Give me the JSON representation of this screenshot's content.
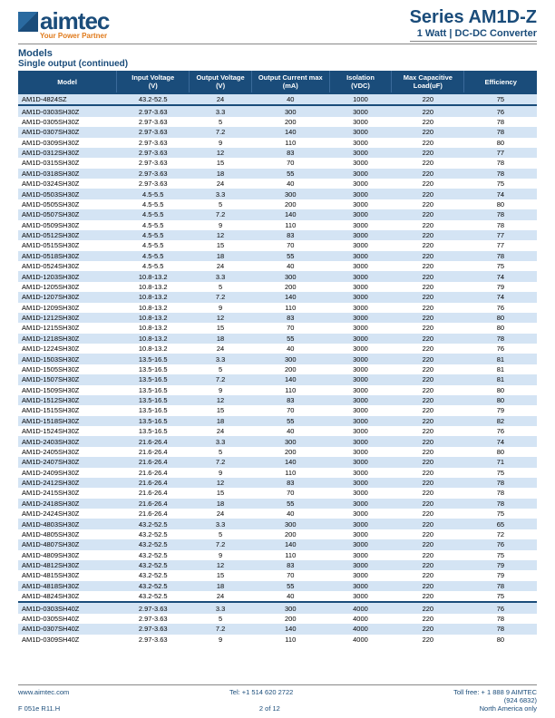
{
  "logo": {
    "text": "aimtec",
    "tagline": "Your Power Partner"
  },
  "title": {
    "series": "Series AM1D-Z",
    "sub": "1 Watt | DC-DC Converter"
  },
  "section": {
    "models": "Models",
    "sub": "Single output (continued)"
  },
  "columns": [
    {
      "l1": "Model",
      "l2": ""
    },
    {
      "l1": "Input Voltage",
      "l2": "(V)"
    },
    {
      "l1": "Output Voltage",
      "l2": "(V)"
    },
    {
      "l1": "Output Current max",
      "l2": "(mA)"
    },
    {
      "l1": "Isolation",
      "l2": "(VDC)"
    },
    {
      "l1": "Max Capacitive Load(uF)",
      "l2": ""
    },
    {
      "l1": "Efficiency",
      "l2": ""
    }
  ],
  "rows_a": [
    [
      "AM1D-4824SZ",
      "43.2-52.5",
      "24",
      "40",
      "1000",
      "220",
      "75"
    ]
  ],
  "rows_b": [
    [
      "AM1D-0303SH30Z",
      "2.97-3.63",
      "3.3",
      "300",
      "3000",
      "220",
      "76"
    ],
    [
      "AM1D-0305SH30Z",
      "2.97-3.63",
      "5",
      "200",
      "3000",
      "220",
      "78"
    ],
    [
      "AM1D-0307SH30Z",
      "2.97-3.63",
      "7.2",
      "140",
      "3000",
      "220",
      "78"
    ],
    [
      "AM1D-0309SH30Z",
      "2.97-3.63",
      "9",
      "110",
      "3000",
      "220",
      "80"
    ],
    [
      "AM1D-0312SH30Z",
      "2.97-3.63",
      "12",
      "83",
      "3000",
      "220",
      "77"
    ],
    [
      "AM1D-0315SH30Z",
      "2.97-3.63",
      "15",
      "70",
      "3000",
      "220",
      "78"
    ],
    [
      "AM1D-0318SH30Z",
      "2.97-3.63",
      "18",
      "55",
      "3000",
      "220",
      "78"
    ],
    [
      "AM1D-0324SH30Z",
      "2.97-3.63",
      "24",
      "40",
      "3000",
      "220",
      "75"
    ],
    [
      "AM1D-0503SH30Z",
      "4.5-5.5",
      "3.3",
      "300",
      "3000",
      "220",
      "74"
    ],
    [
      "AM1D-0505SH30Z",
      "4.5-5.5",
      "5",
      "200",
      "3000",
      "220",
      "80"
    ],
    [
      "AM1D-0507SH30Z",
      "4.5-5.5",
      "7.2",
      "140",
      "3000",
      "220",
      "78"
    ],
    [
      "AM1D-0509SH30Z",
      "4.5-5.5",
      "9",
      "110",
      "3000",
      "220",
      "78"
    ],
    [
      "AM1D-0512SH30Z",
      "4.5-5.5",
      "12",
      "83",
      "3000",
      "220",
      "77"
    ],
    [
      "AM1D-0515SH30Z",
      "4.5-5.5",
      "15",
      "70",
      "3000",
      "220",
      "77"
    ],
    [
      "AM1D-0518SH30Z",
      "4.5-5.5",
      "18",
      "55",
      "3000",
      "220",
      "78"
    ],
    [
      "AM1D-0524SH30Z",
      "4.5-5.5",
      "24",
      "40",
      "3000",
      "220",
      "75"
    ],
    [
      "AM1D-1203SH30Z",
      "10.8-13.2",
      "3.3",
      "300",
      "3000",
      "220",
      "74"
    ],
    [
      "AM1D-1205SH30Z",
      "10.8-13.2",
      "5",
      "200",
      "3000",
      "220",
      "79"
    ],
    [
      "AM1D-1207SH30Z",
      "10.8-13.2",
      "7.2",
      "140",
      "3000",
      "220",
      "74"
    ],
    [
      "AM1D-1209SH30Z",
      "10.8-13.2",
      "9",
      "110",
      "3000",
      "220",
      "76"
    ],
    [
      "AM1D-1212SH30Z",
      "10.8-13.2",
      "12",
      "83",
      "3000",
      "220",
      "80"
    ],
    [
      "AM1D-1215SH30Z",
      "10.8-13.2",
      "15",
      "70",
      "3000",
      "220",
      "80"
    ],
    [
      "AM1D-1218SH30Z",
      "10.8-13.2",
      "18",
      "55",
      "3000",
      "220",
      "78"
    ],
    [
      "AM1D-1224SH30Z",
      "10.8-13.2",
      "24",
      "40",
      "3000",
      "220",
      "76"
    ],
    [
      "AM1D-1503SH30Z",
      "13.5-16.5",
      "3.3",
      "300",
      "3000",
      "220",
      "81"
    ],
    [
      "AM1D-1505SH30Z",
      "13.5-16.5",
      "5",
      "200",
      "3000",
      "220",
      "81"
    ],
    [
      "AM1D-1507SH30Z",
      "13.5-16.5",
      "7.2",
      "140",
      "3000",
      "220",
      "81"
    ],
    [
      "AM1D-1509SH30Z",
      "13.5-16.5",
      "9",
      "110",
      "3000",
      "220",
      "80"
    ],
    [
      "AM1D-1512SH30Z",
      "13.5-16.5",
      "12",
      "83",
      "3000",
      "220",
      "80"
    ],
    [
      "AM1D-1515SH30Z",
      "13.5-16.5",
      "15",
      "70",
      "3000",
      "220",
      "79"
    ],
    [
      "AM1D-1518SH30Z",
      "13.5-16.5",
      "18",
      "55",
      "3000",
      "220",
      "82"
    ],
    [
      "AM1D-1524SH30Z",
      "13.5-16.5",
      "24",
      "40",
      "3000",
      "220",
      "76"
    ],
    [
      "AM1D-2403SH30Z",
      "21.6-26.4",
      "3.3",
      "300",
      "3000",
      "220",
      "74"
    ],
    [
      "AM1D-2405SH30Z",
      "21.6-26.4",
      "5",
      "200",
      "3000",
      "220",
      "80"
    ],
    [
      "AM1D-2407SH30Z",
      "21.6-26.4",
      "7.2",
      "140",
      "3000",
      "220",
      "71"
    ],
    [
      "AM1D-2409SH30Z",
      "21.6-26.4",
      "9",
      "110",
      "3000",
      "220",
      "75"
    ],
    [
      "AM1D-2412SH30Z",
      "21.6-26.4",
      "12",
      "83",
      "3000",
      "220",
      "78"
    ],
    [
      "AM1D-2415SH30Z",
      "21.6-26.4",
      "15",
      "70",
      "3000",
      "220",
      "78"
    ],
    [
      "AM1D-2418SH30Z",
      "21.6-26.4",
      "18",
      "55",
      "3000",
      "220",
      "78"
    ],
    [
      "AM1D-2424SH30Z",
      "21.6-26.4",
      "24",
      "40",
      "3000",
      "220",
      "75"
    ],
    [
      "AM1D-4803SH30Z",
      "43.2-52.5",
      "3.3",
      "300",
      "3000",
      "220",
      "65"
    ],
    [
      "AM1D-4805SH30Z",
      "43.2-52.5",
      "5",
      "200",
      "3000",
      "220",
      "72"
    ],
    [
      "AM1D-4807SH30Z",
      "43.2-52.5",
      "7.2",
      "140",
      "3000",
      "220",
      "76"
    ],
    [
      "AM1D-4809SH30Z",
      "43.2-52.5",
      "9",
      "110",
      "3000",
      "220",
      "75"
    ],
    [
      "AM1D-4812SH30Z",
      "43.2-52.5",
      "12",
      "83",
      "3000",
      "220",
      "79"
    ],
    [
      "AM1D-4815SH30Z",
      "43.2-52.5",
      "15",
      "70",
      "3000",
      "220",
      "79"
    ],
    [
      "AM1D-4818SH30Z",
      "43.2-52.5",
      "18",
      "55",
      "3000",
      "220",
      "78"
    ],
    [
      "AM1D-4824SH30Z",
      "43.2-52.5",
      "24",
      "40",
      "3000",
      "220",
      "75"
    ]
  ],
  "rows_c": [
    [
      "AM1D-0303SH40Z",
      "2.97-3.63",
      "3.3",
      "300",
      "4000",
      "220",
      "76"
    ],
    [
      "AM1D-0305SH40Z",
      "2.97-3.63",
      "5",
      "200",
      "4000",
      "220",
      "78"
    ],
    [
      "AM1D-0307SH40Z",
      "2.97-3.63",
      "7.2",
      "140",
      "4000",
      "220",
      "78"
    ],
    [
      "AM1D-0309SH40Z",
      "2.97-3.63",
      "9",
      "110",
      "4000",
      "220",
      "80"
    ]
  ],
  "footer": {
    "url": "www.aimtec.com",
    "tel": "Tel: +1 514 620 2722",
    "tollfree": "Toll free: + 1 888 9 AIMTEC",
    "tf2": "(924 6832)",
    "code": "F 051e R11.H",
    "page": "2 of 12",
    "region": "North America only"
  },
  "style": {
    "header_bg": "#1a4c7a",
    "alt_bg": "#d4e4f4",
    "accent": "#e07a1b",
    "colwidths": [
      "19%",
      "14%",
      "12%",
      "15%",
      "12%",
      "14%",
      "14%"
    ]
  }
}
